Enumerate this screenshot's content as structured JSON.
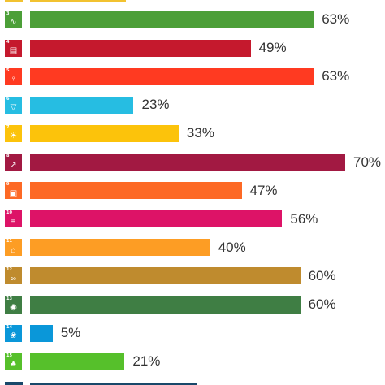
{
  "chart_data": {
    "type": "bar",
    "orientation": "horizontal",
    "xlim": [
      0,
      70
    ],
    "value_suffix": "%",
    "categories": [
      {
        "goal": "3",
        "icon": "heartbeat-icon",
        "value": 63,
        "label": "63%",
        "color": "#4c9f38"
      },
      {
        "goal": "4",
        "icon": "book-icon",
        "value": 49,
        "label": "49%",
        "color": "#c5192d"
      },
      {
        "goal": "5",
        "icon": "gender-symbol-icon",
        "value": 63,
        "label": "63%",
        "color": "#ff3a21"
      },
      {
        "goal": "6",
        "icon": "water-glass-icon",
        "value": 23,
        "label": "23%",
        "color": "#26bde2"
      },
      {
        "goal": "7",
        "icon": "sun-power-icon",
        "value": 33,
        "label": "33%",
        "color": "#fcc30b"
      },
      {
        "goal": "8",
        "icon": "growth-chart-icon",
        "value": 70,
        "label": "70%",
        "color": "#a21942"
      },
      {
        "goal": "9",
        "icon": "cubes-icon",
        "value": 47,
        "label": "47%",
        "color": "#fd6925"
      },
      {
        "goal": "10",
        "icon": "equality-icon",
        "value": 56,
        "label": "56%",
        "color": "#dd1367"
      },
      {
        "goal": "11",
        "icon": "city-buildings-icon",
        "value": 40,
        "label": "40%",
        "color": "#fd9d24"
      },
      {
        "goal": "12",
        "icon": "infinity-icon",
        "value": 60,
        "label": "60%",
        "color": "#bf8b2e"
      },
      {
        "goal": "13",
        "icon": "eye-globe-icon",
        "value": 60,
        "label": "60%",
        "color": "#3f7e44"
      },
      {
        "goal": "14",
        "icon": "fish-icon",
        "value": 5,
        "label": "5%",
        "color": "#0a97d9"
      },
      {
        "goal": "15",
        "icon": "tree-icon",
        "value": 21,
        "label": "21%",
        "color": "#56c02b"
      }
    ],
    "grid": false,
    "legend": "none"
  }
}
